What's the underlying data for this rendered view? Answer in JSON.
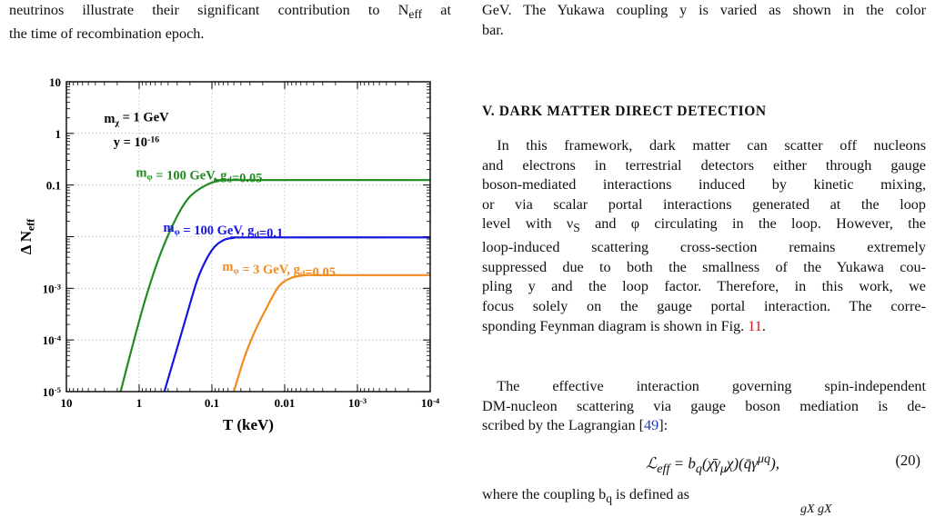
{
  "left_column": {
    "caption_fragment_lines": [
      "neutrinos illustrate their significant contribution to N_eff at",
      "the time of recombination epoch."
    ]
  },
  "right_column": {
    "caption_fragment_lines": [
      "GeV. The Yukawa coupling y is varied as shown in the color",
      "bar."
    ],
    "section_heading": "V.   DARK MATTER DIRECT DETECTION",
    "paragraph1_lines": [
      "In this framework, dark matter can scatter off nucleons",
      "and electrons in terrestrial detectors either through gauge",
      "boson-mediated interactions induced by kinetic mixing,",
      "or via scalar portal interactions generated at the loop",
      "level with ν_S and φ circulating in the loop. However, the",
      "loop-induced scattering cross-section remains extremely",
      "suppressed due to both the smallness of the Yukawa cou-",
      "pling y and the loop factor. Therefore, in this work, we",
      "focus solely on the gauge portal interaction. The corre-",
      "sponding Feynman diagram is shown in Fig. 11."
    ],
    "paragraph2_lines": [
      "The effective interaction governing spin-independent",
      "DM-nucleon scattering via gauge boson mediation is de-",
      "scribed by the Lagrangian [49]:"
    ],
    "equation": "ℒ_eff = b_q(χ̄γ_μχ)(q̄γ^μq),",
    "equation_number": "(20)",
    "after_equation": "where the coupling b_q is defined as",
    "bottom_fragment": "gX     gX"
  },
  "chart_data": {
    "type": "line",
    "xlabel": "T (keV)",
    "ylabel": "Δ N_eff",
    "x_scale": "log",
    "y_scale": "log",
    "x_reversed": true,
    "xlim": [
      10,
      0.0001
    ],
    "ylim": [
      1e-05,
      10
    ],
    "x_ticks": [
      10,
      1,
      0.1,
      0.01,
      0.001,
      0.0001
    ],
    "x_tick_labels": [
      "10",
      "1",
      "0.1",
      "0.01",
      "10^-3",
      "10^-4"
    ],
    "y_ticks": [
      1e-05,
      0.0001,
      0.001,
      0.01,
      0.1,
      1,
      10
    ],
    "y_tick_labels": [
      "10^-5",
      "10^-4",
      "10^-3",
      "",
      "0.1",
      "1",
      "10"
    ],
    "grid": true,
    "annotations": [
      "m_χ = 1 GeV",
      "y = 10^-16"
    ],
    "series": [
      {
        "name": "m_φ = 100 GeV, g_d=0.05",
        "color": "#228B22",
        "x": [
          1.8,
          1.2,
          0.8,
          0.5,
          0.3,
          0.2,
          0.12,
          0.08,
          0.05,
          0.0001
        ],
        "y": [
          1e-05,
          9e-05,
          0.0007,
          0.005,
          0.025,
          0.06,
          0.1,
          0.12,
          0.125,
          0.125
        ]
      },
      {
        "name": "m_φ = 100 GeV, g_d=0.1",
        "color": "#1515e0",
        "x": [
          0.45,
          0.3,
          0.2,
          0.15,
          0.1,
          0.07,
          0.05,
          0.03,
          0.0001
        ],
        "y": [
          1e-05,
          7e-05,
          0.0005,
          0.0018,
          0.0055,
          0.0085,
          0.0095,
          0.0097,
          0.0097
        ]
      },
      {
        "name": "m_φ = 3 GeV, g_d=0.05",
        "color": "#f28a1e",
        "x": [
          0.05,
          0.035,
          0.025,
          0.018,
          0.012,
          0.008,
          0.005,
          0.003,
          0.0001
        ],
        "y": [
          1e-05,
          5e-05,
          0.00016,
          0.0004,
          0.0011,
          0.0016,
          0.0018,
          0.0018,
          0.0018
        ]
      }
    ]
  }
}
